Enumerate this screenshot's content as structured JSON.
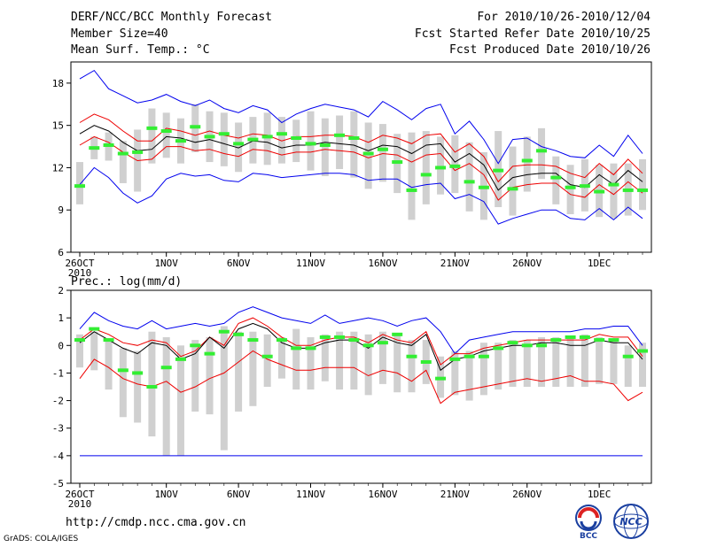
{
  "header": {
    "title": "DERF/NCC/BCC Monthly Forecast",
    "member_size": "Member Size=40",
    "variable": "Mean Surf. Temp.: °C",
    "period": "For 2010/10/26-2010/12/04",
    "fcst_started": "Fcst Started Refer Date 2010/10/25",
    "fcst_produced": "Fcst Produced Date 2010/10/26"
  },
  "footer": {
    "url": "http://cmdp.ncc.cma.gov.cn",
    "credit": "GrADS: COLA/IGES",
    "logo1_text": "BCC",
    "logo2_text": "NCC"
  },
  "colors": {
    "max_min": "#0000ee",
    "spread": "#ee0000",
    "mean": "#000000",
    "box": "#d0d0d0",
    "obs": "#33ee33"
  },
  "chart_data": [
    {
      "type": "line",
      "title": "Mean Surf. Temp.: °C",
      "x_tick_labels": [
        "26OCT",
        "1NOV",
        "6NOV",
        "11NOV",
        "16NOV",
        "21NOV",
        "26NOV",
        "1DEC"
      ],
      "x_tick_days": [
        0,
        6,
        11,
        16,
        21,
        26,
        31,
        36
      ],
      "year_label": "2010",
      "ylim": [
        6,
        19.5
      ],
      "yticks": [
        6,
        9,
        12,
        15,
        18
      ],
      "days": 40,
      "series": [
        {
          "name": "max",
          "values": [
            18.3,
            18.9,
            17.6,
            17.1,
            16.6,
            16.8,
            17.2,
            16.7,
            16.4,
            16.8,
            16.2,
            15.9,
            16.4,
            16.1,
            15.2,
            15.8,
            16.2,
            16.5,
            16.3,
            16.1,
            15.6,
            16.7,
            16.1,
            15.4,
            16.2,
            16.5,
            14.4,
            15.3,
            14.0,
            12.3,
            14.0,
            14.1,
            13.5,
            13.2,
            12.8,
            12.7,
            13.6,
            12.8,
            14.3,
            13.0
          ]
        },
        {
          "name": "upper",
          "values": [
            15.2,
            15.8,
            15.4,
            14.6,
            13.9,
            13.9,
            14.8,
            14.6,
            14.3,
            14.6,
            14.3,
            14.1,
            14.4,
            14.3,
            13.9,
            14.2,
            14.2,
            14.3,
            14.3,
            14.2,
            13.8,
            14.3,
            14.1,
            13.7,
            14.3,
            14.4,
            13.1,
            13.7,
            12.8,
            11.0,
            12.1,
            12.2,
            12.2,
            12.1,
            11.6,
            11.3,
            12.3,
            11.5,
            12.6,
            11.6
          ]
        },
        {
          "name": "mean",
          "values": [
            14.4,
            15.0,
            14.6,
            13.8,
            13.2,
            13.3,
            14.2,
            14.1,
            13.8,
            14.0,
            13.7,
            13.4,
            13.9,
            13.8,
            13.4,
            13.6,
            13.6,
            13.8,
            13.7,
            13.6,
            13.2,
            13.6,
            13.5,
            13.0,
            13.6,
            13.7,
            12.4,
            13.0,
            12.2,
            10.4,
            11.3,
            11.5,
            11.6,
            11.6,
            10.8,
            10.6,
            11.5,
            10.8,
            11.8,
            11.0
          ]
        },
        {
          "name": "lower",
          "values": [
            13.6,
            14.2,
            13.8,
            13.1,
            12.5,
            12.6,
            13.5,
            13.5,
            13.2,
            13.3,
            13.0,
            12.8,
            13.3,
            13.2,
            12.9,
            13.1,
            13.1,
            13.3,
            13.2,
            13.1,
            12.7,
            13.0,
            12.9,
            12.4,
            12.9,
            13.0,
            11.8,
            12.3,
            11.5,
            9.7,
            10.6,
            10.8,
            10.9,
            10.9,
            10.1,
            9.9,
            10.8,
            10.1,
            11.0,
            10.2
          ]
        },
        {
          "name": "min",
          "values": [
            10.8,
            12.0,
            11.3,
            10.2,
            9.5,
            10.0,
            11.2,
            11.6,
            11.4,
            11.5,
            11.1,
            11.0,
            11.6,
            11.5,
            11.3,
            11.4,
            11.5,
            11.6,
            11.6,
            11.5,
            11.1,
            11.2,
            11.2,
            10.6,
            10.8,
            10.9,
            9.8,
            10.1,
            9.6,
            8.0,
            8.4,
            8.7,
            9.0,
            9.0,
            8.4,
            8.3,
            9.1,
            8.3,
            9.2,
            8.4
          ]
        },
        {
          "name": "obs",
          "values": [
            10.7,
            13.4,
            13.6,
            13.0,
            13.1,
            14.8,
            14.6,
            13.9,
            14.9,
            14.2,
            14.4,
            13.7,
            14.0,
            14.2,
            14.4,
            14.1,
            13.7,
            13.6,
            14.3,
            14.1,
            13.0,
            13.3,
            12.4,
            10.4,
            11.5,
            12.0,
            12.1,
            11.0,
            10.6,
            11.8,
            10.5,
            12.5,
            13.2,
            11.3,
            10.6,
            10.7,
            10.3,
            10.8,
            10.4,
            10.4
          ]
        },
        {
          "name": "box_hi",
          "values": [
            12.4,
            14.2,
            14.5,
            13.9,
            14.7,
            16.2,
            15.9,
            15.5,
            16.5,
            16.0,
            15.9,
            15.2,
            15.6,
            15.9,
            15.6,
            15.4,
            16.0,
            15.5,
            15.7,
            16.0,
            15.2,
            15.1,
            14.4,
            14.5,
            14.6,
            14.2,
            14.3,
            13.8,
            13.1,
            14.6,
            13.5,
            14.2,
            14.8,
            12.8,
            12.2,
            12.6,
            12.2,
            12.3,
            12.3,
            12.6
          ]
        },
        {
          "name": "box_lo",
          "values": [
            9.4,
            12.6,
            12.5,
            10.9,
            10.3,
            12.3,
            12.7,
            12.3,
            13.1,
            12.4,
            12.1,
            11.7,
            12.3,
            12.2,
            12.3,
            12.4,
            11.8,
            11.4,
            11.9,
            11.3,
            10.5,
            11.0,
            10.2,
            8.3,
            9.4,
            10.1,
            10.2,
            8.9,
            8.3,
            9.2,
            8.6,
            10.3,
            11.2,
            9.4,
            8.7,
            8.9,
            8.5,
            8.4,
            8.6,
            9.0
          ]
        }
      ]
    },
    {
      "type": "line",
      "title": "Prec.: log(mm/d)",
      "x_tick_labels": [
        "26OCT",
        "1NOV",
        "6NOV",
        "11NOV",
        "16NOV",
        "21NOV",
        "26NOV",
        "1DEC"
      ],
      "x_tick_days": [
        0,
        6,
        11,
        16,
        21,
        26,
        31,
        36
      ],
      "year_label": "2010",
      "ylim": [
        -5,
        2
      ],
      "yticks": [
        -5,
        -4,
        -3,
        -2,
        -1,
        0,
        1,
        2
      ],
      "days": 40,
      "series": [
        {
          "name": "max",
          "values": [
            0.6,
            1.2,
            0.9,
            0.7,
            0.6,
            0.9,
            0.6,
            0.7,
            0.8,
            0.7,
            0.8,
            1.2,
            1.4,
            1.2,
            1.0,
            0.9,
            0.8,
            1.1,
            0.8,
            0.9,
            1.0,
            0.9,
            0.7,
            0.9,
            1.0,
            0.5,
            -0.3,
            0.2,
            0.3,
            0.4,
            0.5,
            0.5,
            0.5,
            0.5,
            0.5,
            0.6,
            0.6,
            0.7,
            0.7,
            0.0
          ]
        },
        {
          "name": "upper",
          "values": [
            0.2,
            0.6,
            0.4,
            0.1,
            0.0,
            0.2,
            0.1,
            -0.4,
            -0.2,
            0.3,
            0.0,
            0.8,
            1.0,
            0.7,
            0.3,
            0.0,
            0.0,
            0.2,
            0.3,
            0.3,
            0.1,
            0.4,
            0.2,
            0.1,
            0.5,
            -0.7,
            -0.3,
            -0.3,
            -0.1,
            0.0,
            0.1,
            0.2,
            0.2,
            0.2,
            0.2,
            0.2,
            0.4,
            0.3,
            0.3,
            -0.4
          ]
        },
        {
          "name": "mean",
          "values": [
            0.1,
            0.5,
            0.2,
            -0.1,
            -0.3,
            0.1,
            0.0,
            -0.5,
            -0.3,
            0.3,
            -0.1,
            0.6,
            0.8,
            0.6,
            0.1,
            -0.1,
            -0.1,
            0.1,
            0.2,
            0.2,
            -0.1,
            0.3,
            0.1,
            0.0,
            0.4,
            -0.9,
            -0.5,
            -0.4,
            -0.2,
            -0.1,
            0.0,
            0.0,
            0.1,
            0.1,
            0.0,
            0.0,
            0.2,
            0.1,
            0.1,
            -0.5
          ]
        },
        {
          "name": "lower",
          "values": [
            -1.2,
            -0.5,
            -0.8,
            -1.2,
            -1.4,
            -1.5,
            -1.3,
            -1.7,
            -1.5,
            -1.2,
            -1.0,
            -0.6,
            -0.2,
            -0.5,
            -0.7,
            -0.9,
            -0.9,
            -0.8,
            -0.8,
            -0.8,
            -1.1,
            -0.9,
            -1.0,
            -1.3,
            -0.9,
            -2.1,
            -1.7,
            -1.6,
            -1.5,
            -1.4,
            -1.3,
            -1.2,
            -1.3,
            -1.2,
            -1.1,
            -1.3,
            -1.3,
            -1.4,
            -2.0,
            -1.7
          ]
        },
        {
          "name": "min",
          "values": [
            -4,
            -4,
            -4,
            -4,
            -4,
            -4,
            -4,
            -4,
            -4,
            -4,
            -4,
            -4,
            -4,
            -4,
            -4,
            -4,
            -4,
            -4,
            -4,
            -4,
            -4,
            -4,
            -4,
            -4,
            -4,
            -4,
            -4,
            -4,
            -4,
            -4,
            -4,
            -4,
            -4,
            -4,
            -4,
            -4,
            -4,
            -4,
            -4,
            -4
          ]
        },
        {
          "name": "obs",
          "values": [
            0.2,
            0.6,
            0.2,
            -0.9,
            -1.0,
            -1.5,
            -0.8,
            -0.5,
            0.0,
            -0.3,
            0.5,
            0.4,
            0.2,
            -0.4,
            0.2,
            -0.1,
            -0.1,
            0.3,
            0.3,
            0.2,
            0.0,
            0.1,
            0.4,
            -0.4,
            -0.6,
            -1.2,
            -0.5,
            -0.4,
            -0.4,
            -0.1,
            0.1,
            0.0,
            0.0,
            0.2,
            0.3,
            0.3,
            0.2,
            0.2,
            -0.4,
            -0.2
          ]
        },
        {
          "name": "box_hi",
          "values": [
            0.4,
            0.5,
            0.2,
            -0.1,
            -0.2,
            0.5,
            0.3,
            0.0,
            0.2,
            0.3,
            0.7,
            0.5,
            0.5,
            0.4,
            0.3,
            0.6,
            0.3,
            0.4,
            0.5,
            0.5,
            0.4,
            0.5,
            0.4,
            0.2,
            0.2,
            -0.4,
            -0.2,
            -0.2,
            0.1,
            0.1,
            0.2,
            0.2,
            0.3,
            0.3,
            0.3,
            0.4,
            0.3,
            0.2,
            0.0,
            0.1
          ]
        },
        {
          "name": "box_lo",
          "values": [
            -0.8,
            -0.9,
            -1.6,
            -2.6,
            -2.8,
            -3.3,
            -4.0,
            -4.0,
            -2.4,
            -2.5,
            -3.8,
            -2.4,
            -2.2,
            -1.5,
            -1.2,
            -1.6,
            -1.6,
            -1.3,
            -1.6,
            -1.6,
            -1.8,
            -1.4,
            -1.7,
            -1.7,
            -1.4,
            -1.9,
            -1.8,
            -2.0,
            -1.8,
            -1.6,
            -1.5,
            -1.5,
            -1.5,
            -1.5,
            -1.5,
            -1.5,
            -1.4,
            -1.4,
            -1.5,
            -1.5
          ]
        }
      ]
    }
  ]
}
